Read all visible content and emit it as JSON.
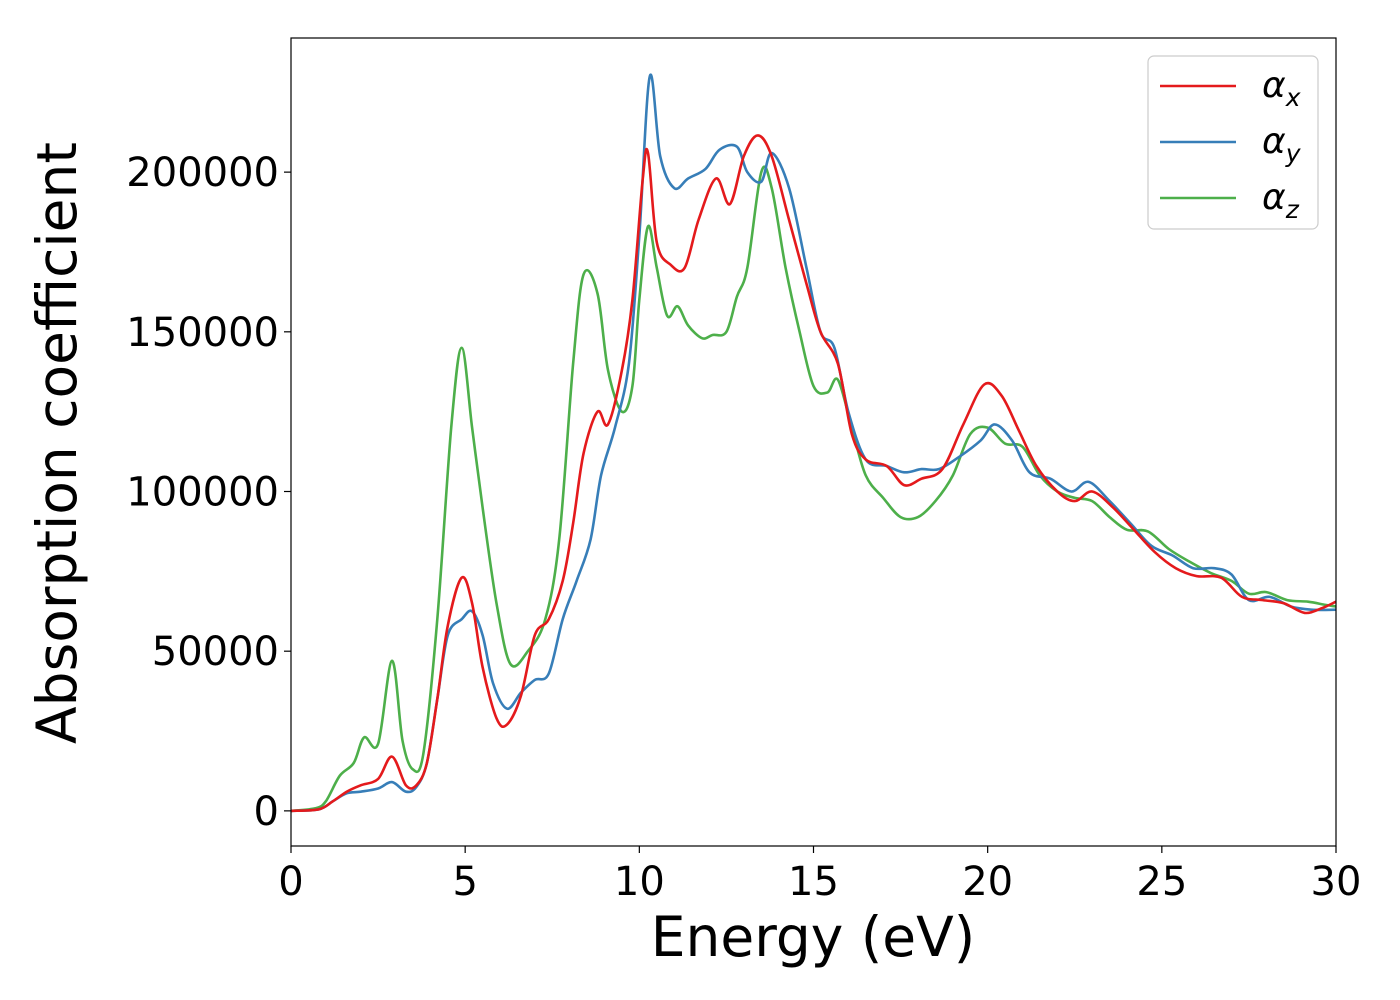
{
  "chart_data": {
    "type": "line",
    "xlabel": "Energy (eV)",
    "ylabel": "Absorption coefficient",
    "xlim": [
      0,
      30
    ],
    "ylim": [
      -11000,
      242000
    ],
    "xticks": [
      0,
      5,
      10,
      15,
      20,
      25,
      30
    ],
    "xtick_labels": [
      "0",
      "5",
      "10",
      "15",
      "20",
      "25",
      "30"
    ],
    "yticks": [
      0,
      50000,
      100000,
      150000,
      200000
    ],
    "ytick_labels": [
      "0",
      "50000",
      "100000",
      "150000",
      "200000"
    ],
    "grid": false,
    "legend_position": "top-right",
    "series": [
      {
        "name": "αx",
        "legend_base": "α",
        "legend_sub": "x",
        "color": "#e41a1c",
        "points": [
          [
            0,
            0
          ],
          [
            0.8,
            500
          ],
          [
            1.2,
            3000
          ],
          [
            1.6,
            6000
          ],
          [
            2.0,
            8000
          ],
          [
            2.5,
            10000
          ],
          [
            2.9,
            17000
          ],
          [
            3.3,
            8000
          ],
          [
            3.6,
            8000
          ],
          [
            3.9,
            15000
          ],
          [
            4.2,
            35000
          ],
          [
            4.5,
            58000
          ],
          [
            4.9,
            73000
          ],
          [
            5.2,
            65000
          ],
          [
            5.5,
            45000
          ],
          [
            5.9,
            29000
          ],
          [
            6.2,
            27000
          ],
          [
            6.6,
            36000
          ],
          [
            7.0,
            55000
          ],
          [
            7.4,
            60000
          ],
          [
            7.8,
            72000
          ],
          [
            8.1,
            90000
          ],
          [
            8.4,
            112000
          ],
          [
            8.8,
            125000
          ],
          [
            9.1,
            121000
          ],
          [
            9.5,
            138000
          ],
          [
            9.8,
            160000
          ],
          [
            10.1,
            198000
          ],
          [
            10.25,
            206000
          ],
          [
            10.5,
            178000
          ],
          [
            10.9,
            171000
          ],
          [
            11.3,
            170000
          ],
          [
            11.7,
            185000
          ],
          [
            12.2,
            198000
          ],
          [
            12.6,
            190000
          ],
          [
            13.0,
            205000
          ],
          [
            13.4,
            211500
          ],
          [
            13.8,
            205000
          ],
          [
            14.3,
            185000
          ],
          [
            14.8,
            165000
          ],
          [
            15.2,
            150000
          ],
          [
            15.7,
            140000
          ],
          [
            16.1,
            118000
          ],
          [
            16.5,
            110000
          ],
          [
            17.1,
            108000
          ],
          [
            17.6,
            102000
          ],
          [
            18.1,
            104000
          ],
          [
            18.7,
            107000
          ],
          [
            19.3,
            121000
          ],
          [
            19.9,
            133500
          ],
          [
            20.4,
            130000
          ],
          [
            20.9,
            119000
          ],
          [
            21.4,
            108000
          ],
          [
            22.0,
            100000
          ],
          [
            22.5,
            97000
          ],
          [
            23.0,
            100000
          ],
          [
            23.6,
            95000
          ],
          [
            24.2,
            88000
          ],
          [
            24.8,
            81000
          ],
          [
            25.4,
            76000
          ],
          [
            26.0,
            73500
          ],
          [
            26.7,
            73000
          ],
          [
            27.3,
            67000
          ],
          [
            27.9,
            66000
          ],
          [
            28.5,
            65000
          ],
          [
            29.1,
            62000
          ],
          [
            29.6,
            63500
          ],
          [
            30,
            65500
          ]
        ]
      },
      {
        "name": "αy",
        "legend_base": "α",
        "legend_sub": "y",
        "color": "#377eb8",
        "points": [
          [
            0,
            0
          ],
          [
            0.8,
            500
          ],
          [
            1.2,
            3000
          ],
          [
            1.6,
            5500
          ],
          [
            2.0,
            6000
          ],
          [
            2.5,
            7000
          ],
          [
            2.9,
            9000
          ],
          [
            3.3,
            6000
          ],
          [
            3.6,
            7500
          ],
          [
            3.9,
            15000
          ],
          [
            4.2,
            35000
          ],
          [
            4.5,
            55000
          ],
          [
            4.9,
            60000
          ],
          [
            5.2,
            62500
          ],
          [
            5.5,
            55000
          ],
          [
            5.8,
            40000
          ],
          [
            6.2,
            32000
          ],
          [
            6.6,
            37000
          ],
          [
            7.0,
            41000
          ],
          [
            7.4,
            43000
          ],
          [
            7.8,
            60000
          ],
          [
            8.2,
            72000
          ],
          [
            8.6,
            85000
          ],
          [
            8.9,
            105000
          ],
          [
            9.3,
            120000
          ],
          [
            9.7,
            140000
          ],
          [
            10.0,
            180000
          ],
          [
            10.3,
            230000
          ],
          [
            10.6,
            205000
          ],
          [
            11.0,
            195000
          ],
          [
            11.4,
            198000
          ],
          [
            11.9,
            201000
          ],
          [
            12.3,
            207000
          ],
          [
            12.8,
            208000
          ],
          [
            13.1,
            200000
          ],
          [
            13.5,
            197000
          ],
          [
            13.8,
            206000
          ],
          [
            14.3,
            195000
          ],
          [
            14.8,
            170000
          ],
          [
            15.2,
            150000
          ],
          [
            15.6,
            145000
          ],
          [
            16.0,
            125000
          ],
          [
            16.5,
            110000
          ],
          [
            17.1,
            108000
          ],
          [
            17.6,
            106000
          ],
          [
            18.1,
            107000
          ],
          [
            18.6,
            107000
          ],
          [
            19.2,
            111000
          ],
          [
            19.8,
            116000
          ],
          [
            20.2,
            121000
          ],
          [
            20.7,
            116000
          ],
          [
            21.2,
            106000
          ],
          [
            21.8,
            104000
          ],
          [
            22.4,
            100000
          ],
          [
            22.9,
            103000
          ],
          [
            23.5,
            97000
          ],
          [
            24.1,
            90000
          ],
          [
            24.7,
            83000
          ],
          [
            25.3,
            80000
          ],
          [
            25.9,
            76000
          ],
          [
            26.5,
            76000
          ],
          [
            27.0,
            74000
          ],
          [
            27.5,
            66000
          ],
          [
            28.1,
            67000
          ],
          [
            28.7,
            64000
          ],
          [
            29.3,
            63000
          ],
          [
            30,
            63000
          ]
        ]
      },
      {
        "name": "αz",
        "legend_base": "α",
        "legend_sub": "z",
        "color": "#4daf4a",
        "points": [
          [
            0,
            0
          ],
          [
            0.7,
            800
          ],
          [
            1.0,
            3000
          ],
          [
            1.4,
            11000
          ],
          [
            1.8,
            15000
          ],
          [
            2.1,
            23000
          ],
          [
            2.5,
            21000
          ],
          [
            2.9,
            47000
          ],
          [
            3.2,
            22000
          ],
          [
            3.5,
            13000
          ],
          [
            3.8,
            18000
          ],
          [
            4.2,
            60000
          ],
          [
            4.6,
            120000
          ],
          [
            4.9,
            145000
          ],
          [
            5.2,
            120000
          ],
          [
            5.5,
            95000
          ],
          [
            5.9,
            65000
          ],
          [
            6.3,
            46000
          ],
          [
            6.8,
            50000
          ],
          [
            7.3,
            60000
          ],
          [
            7.7,
            85000
          ],
          [
            8.1,
            140000
          ],
          [
            8.4,
            168000
          ],
          [
            8.8,
            162000
          ],
          [
            9.1,
            138000
          ],
          [
            9.5,
            125000
          ],
          [
            9.8,
            133000
          ],
          [
            10.0,
            160000
          ],
          [
            10.25,
            183000
          ],
          [
            10.5,
            170000
          ],
          [
            10.8,
            155000
          ],
          [
            11.1,
            158000
          ],
          [
            11.4,
            152000
          ],
          [
            11.8,
            148000
          ],
          [
            12.1,
            149000
          ],
          [
            12.5,
            150000
          ],
          [
            12.8,
            161000
          ],
          [
            13.1,
            170000
          ],
          [
            13.5,
            200000
          ],
          [
            13.8,
            195000
          ],
          [
            14.2,
            170000
          ],
          [
            14.6,
            150000
          ],
          [
            15.0,
            133000
          ],
          [
            15.4,
            131000
          ],
          [
            15.7,
            135000
          ],
          [
            16.1,
            120000
          ],
          [
            16.5,
            105000
          ],
          [
            17.0,
            98000
          ],
          [
            17.5,
            92000
          ],
          [
            18.0,
            92000
          ],
          [
            18.5,
            97000
          ],
          [
            19.0,
            105000
          ],
          [
            19.5,
            118000
          ],
          [
            20.0,
            120000
          ],
          [
            20.5,
            115000
          ],
          [
            21.0,
            114000
          ],
          [
            21.5,
            105000
          ],
          [
            22.0,
            100000
          ],
          [
            22.5,
            98000
          ],
          [
            23.0,
            97000
          ],
          [
            23.5,
            92000
          ],
          [
            24.0,
            88000
          ],
          [
            24.6,
            87500
          ],
          [
            25.2,
            82000
          ],
          [
            25.8,
            78000
          ],
          [
            26.4,
            74500
          ],
          [
            27.0,
            72000
          ],
          [
            27.5,
            68000
          ],
          [
            28.0,
            68500
          ],
          [
            28.6,
            66000
          ],
          [
            29.2,
            65500
          ],
          [
            29.7,
            64500
          ],
          [
            30,
            64000
          ]
        ]
      }
    ]
  }
}
